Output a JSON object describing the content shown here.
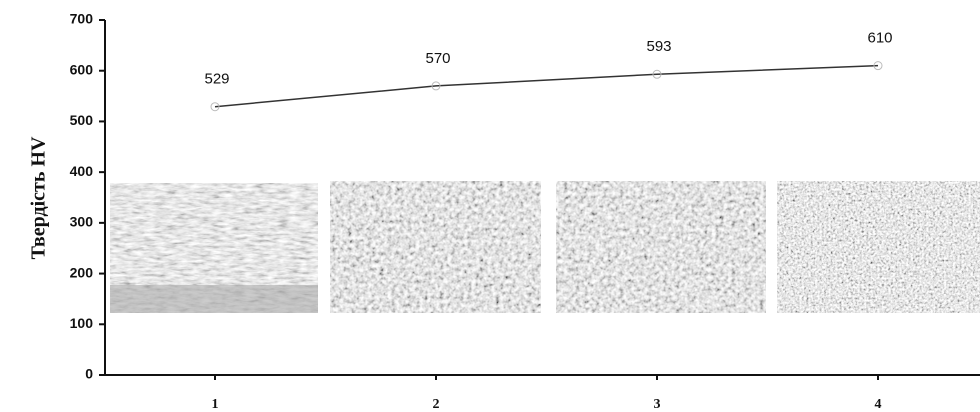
{
  "chart_data": {
    "type": "line",
    "y_label": "Твердість HV",
    "categories": [
      "1",
      "2",
      "3",
      "4"
    ],
    "values": [
      529,
      570,
      593,
      610
    ],
    "color": "#333333",
    "ylim": [
      0,
      700
    ],
    "yticks": [
      0,
      100,
      200,
      300,
      400,
      500,
      600,
      700
    ],
    "grid": false
  }
}
